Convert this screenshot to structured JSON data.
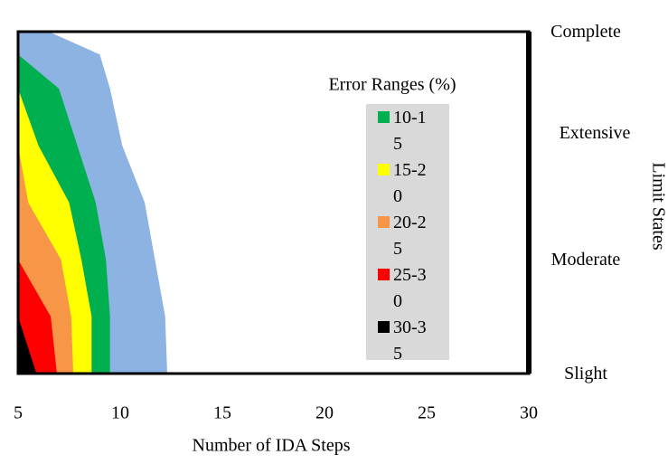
{
  "chart_data": {
    "type": "contour_area",
    "xlabel": "Number of IDA Steps",
    "ylabel": "Limit States",
    "legend_title": "Error Ranges (%)",
    "xlim": [
      5,
      30
    ],
    "xticks": [
      5,
      10,
      15,
      20,
      25,
      30
    ],
    "ylim": [
      0,
      3
    ],
    "y_categories": [
      "Slight",
      "Moderate",
      "Extensive",
      "Complete"
    ],
    "y_levels": [
      0,
      0.5,
      1,
      1.5,
      2,
      2.5,
      2.8,
      3
    ],
    "series": [
      {
        "color": "#8db3e2",
        "values": [
          12.3,
          12.2,
          11.7,
          11.2,
          10.1,
          9.5,
          9.0,
          6.5
        ]
      },
      {
        "name": "10-15",
        "color": "#00b050",
        "values": [
          9.5,
          9.5,
          9.3,
          8.8,
          7.9,
          7.0,
          5,
          5
        ]
      },
      {
        "name": "15-20",
        "color": "#ffff00",
        "values": [
          8.6,
          8.6,
          8.1,
          7.5,
          6.0,
          5,
          5,
          5
        ]
      },
      {
        "name": "20-25",
        "color": "#f79646",
        "values": [
          7.7,
          7.6,
          7.1,
          5.5,
          5,
          5,
          5,
          5
        ]
      },
      {
        "name": "25-30",
        "color": "#ff0000",
        "values": [
          6.9,
          6.6,
          5,
          5,
          5,
          5,
          5,
          5
        ]
      },
      {
        "name": "30-35",
        "color": "#000000",
        "values": [
          5.9,
          5,
          5,
          5,
          5,
          5,
          5,
          5
        ]
      }
    ]
  }
}
